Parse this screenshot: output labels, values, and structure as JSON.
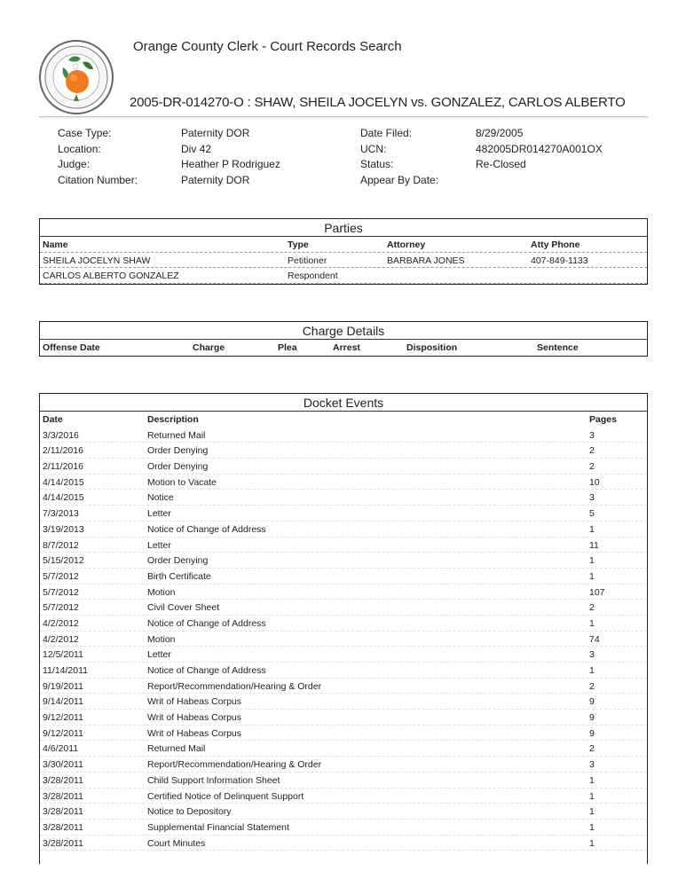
{
  "header": {
    "site_title": "Orange County Clerk - Court Records Search",
    "logo_text": "CLERK CIRCUIT COURT ORANGE COUNTY FLORIDA",
    "case_title": "2005-DR-014270-O : SHAW, SHEILA JOCELYN vs. GONZALEZ, CARLOS ALBERTO"
  },
  "case_info": {
    "left": [
      {
        "label": "Case Type:",
        "value": "Paternity DOR"
      },
      {
        "label": "Location:",
        "value": "Div 42"
      },
      {
        "label": "Judge:",
        "value": "Heather P Rodriguez"
      },
      {
        "label": "Citation Number:",
        "value": "Paternity DOR"
      }
    ],
    "right": [
      {
        "label": "Date Filed:",
        "value": "8/29/2005"
      },
      {
        "label": "UCN:",
        "value": "482005DR014270A001OX"
      },
      {
        "label": "Status:",
        "value": "Re-Closed"
      },
      {
        "label": "Appear By Date:",
        "value": ""
      }
    ]
  },
  "parties": {
    "title": "Parties",
    "columns": [
      "Name",
      "Type",
      "Attorney",
      "Atty Phone"
    ],
    "rows": [
      [
        "SHEILA JOCELYN SHAW",
        "Petitioner",
        "BARBARA JONES",
        "407-849-1133"
      ],
      [
        "CARLOS ALBERTO GONZALEZ",
        "Respondent",
        "",
        ""
      ]
    ]
  },
  "charges": {
    "title": "Charge Details",
    "columns": [
      "Offense Date",
      "Charge",
      "Plea",
      "Arrest",
      "Disposition",
      "Sentence"
    ],
    "rows": []
  },
  "docket": {
    "title": "Docket Events",
    "columns": [
      "Date",
      "Description",
      "Pages"
    ],
    "rows": [
      [
        "3/3/2016",
        "Returned Mail",
        "3"
      ],
      [
        "2/11/2016",
        "Order Denying",
        "2"
      ],
      [
        "2/11/2016",
        "Order Denying",
        "2"
      ],
      [
        "4/14/2015",
        "Motion to Vacate",
        "10"
      ],
      [
        "4/14/2015",
        "Notice",
        "3"
      ],
      [
        "7/3/2013",
        "Letter",
        "5"
      ],
      [
        "3/19/2013",
        "Notice of Change of Address",
        "1"
      ],
      [
        "8/7/2012",
        "Letter",
        "11"
      ],
      [
        "5/15/2012",
        "Order Denying",
        "1"
      ],
      [
        "5/7/2012",
        "Birth Certificate",
        "1"
      ],
      [
        "5/7/2012",
        "Motion",
        "107"
      ],
      [
        "5/7/2012",
        "Civil Cover Sheet",
        "2"
      ],
      [
        "4/2/2012",
        "Notice of Change of Address",
        "1"
      ],
      [
        "4/2/2012",
        "Motion",
        "74"
      ],
      [
        "12/5/2011",
        "Letter",
        "3"
      ],
      [
        "11/14/2011",
        "Notice of Change of Address",
        "1"
      ],
      [
        "9/19/2011",
        "Report/Recommendation/Hearing & Order",
        "2"
      ],
      [
        "9/14/2011",
        "Writ of Habeas Corpus",
        "9"
      ],
      [
        "9/12/2011",
        "Writ of Habeas Corpus",
        "9"
      ],
      [
        "9/12/2011",
        "Writ of Habeas Corpus",
        "9"
      ],
      [
        "4/6/2011",
        "Returned Mail",
        "2"
      ],
      [
        "3/30/2011",
        "Report/Recommendation/Hearing & Order",
        "3"
      ],
      [
        "3/28/2011",
        "Child Support Information Sheet",
        "1"
      ],
      [
        "3/28/2011",
        "Certified Notice of Delinquent Support",
        "1"
      ],
      [
        "3/28/2011",
        "Notice to Depository",
        "1"
      ],
      [
        "3/28/2011",
        "Supplemental Financial Statement",
        "1"
      ],
      [
        "3/28/2011",
        "Court Minutes",
        "1"
      ]
    ]
  }
}
